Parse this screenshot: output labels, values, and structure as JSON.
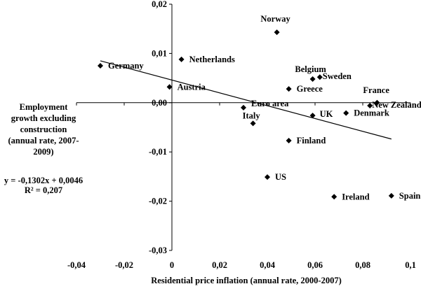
{
  "chart_data": {
    "type": "scatter",
    "title": "",
    "xlabel": "Residential price inflation (annual rate, 2000-2007)",
    "ylabel_lines": [
      "Employment",
      "growth excluding",
      "construction",
      "(annual rate, 2007-",
      "2009)"
    ],
    "xlim": [
      -0.04,
      0.1
    ],
    "ylim": [
      -0.03,
      0.02
    ],
    "x_ticks": [
      -0.04,
      -0.02,
      0,
      0.02,
      0.04,
      0.06,
      0.08,
      0.1
    ],
    "x_tick_labels": [
      "-0,04",
      "-0,02",
      "0",
      "0,02",
      "0,04",
      "0,06",
      "0,08",
      "0,1"
    ],
    "y_ticks": [
      0.02,
      0.01,
      0,
      -0.01,
      -0.02,
      -0.03
    ],
    "y_tick_labels": [
      "0,02",
      "0,01",
      "0,00",
      "-0,01",
      "-0,02",
      "-0,03"
    ],
    "grid": false,
    "legend": "none",
    "marker_color": "#000000",
    "points": [
      {
        "label": "Norway",
        "x": 0.044,
        "y": 0.0143
      },
      {
        "label": "Netherlands",
        "x": 0.004,
        "y": 0.0088
      },
      {
        "label": "Germany",
        "x": -0.03,
        "y": 0.0075
      },
      {
        "label": "Belgium",
        "x": 0.059,
        "y": 0.0048
      },
      {
        "label": "Sweden",
        "x": 0.062,
        "y": 0.0052
      },
      {
        "label": "Austria",
        "x": -0.001,
        "y": 0.0032
      },
      {
        "label": "Greece",
        "x": 0.049,
        "y": 0.0028
      },
      {
        "label": "France",
        "x": 0.086,
        "y": 0.0
      },
      {
        "label": "New Zealand",
        "x": 0.083,
        "y": -0.0006
      },
      {
        "label": "Euro area",
        "x": 0.03,
        "y": -0.001
      },
      {
        "label": "Denmark",
        "x": 0.073,
        "y": -0.0021
      },
      {
        "label": "UK",
        "x": 0.059,
        "y": -0.0026
      },
      {
        "label": "Italy",
        "x": 0.034,
        "y": -0.0042
      },
      {
        "label": "Finland",
        "x": 0.049,
        "y": -0.0077
      },
      {
        "label": "US",
        "x": 0.04,
        "y": -0.0151
      },
      {
        "label": "Ireland",
        "x": 0.068,
        "y": -0.0191
      },
      {
        "label": "Spain",
        "x": 0.092,
        "y": -0.0189
      }
    ],
    "trendline": {
      "slope": -0.1302,
      "intercept": 0.0046,
      "x_range": [
        -0.03,
        0.092
      ]
    },
    "annotations": [
      "y = -0,1302x + 0,0046",
      "R² = 0,207"
    ]
  }
}
